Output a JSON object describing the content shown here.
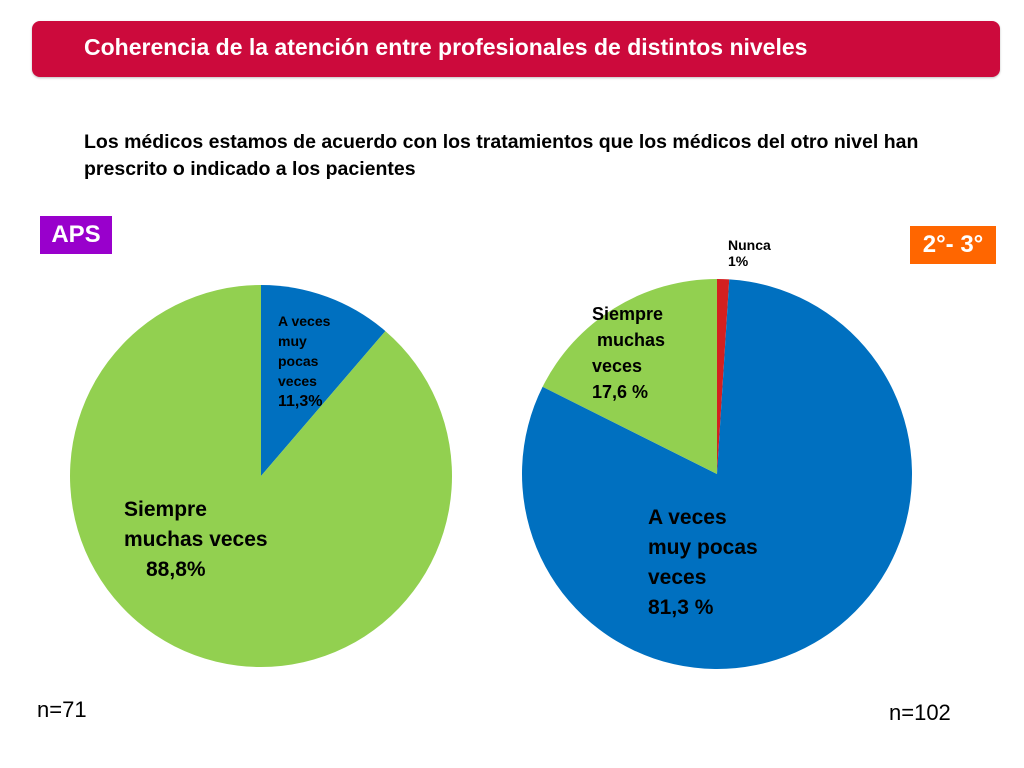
{
  "title": "Coherencia de la atención entre profesionales de distintos niveles",
  "question": "Los médicos estamos de acuerdo con los tratamientos que los médicos del otro nivel han prescrito o indicado a los pacientes",
  "colors": {
    "title_bg": "#cc0a3c",
    "green": "#92d050",
    "blue": "#0070c0",
    "red": "#d32020",
    "tag_left": "#9900cc",
    "tag_right": "#ff6600"
  },
  "chart_data": [
    {
      "type": "pie",
      "title": "APS",
      "n_label": "n=71",
      "slices": [
        {
          "label_lines": [
            "A veces",
            "muy",
            "pocas",
            "veces"
          ],
          "value_label": "11,3%",
          "value": 11.3,
          "color": "#0070c0"
        },
        {
          "label_lines": [
            "Siempre",
            "muchas veces"
          ],
          "value_label": "88,8%",
          "value": 88.8,
          "color": "#92d050"
        }
      ]
    },
    {
      "type": "pie",
      "title": "2°- 3°",
      "n_label": "n=102",
      "slices": [
        {
          "label_lines": [
            "Nunca"
          ],
          "value_label": "1%",
          "value": 1,
          "color": "#d32020"
        },
        {
          "label_lines": [
            "A veces",
            "muy pocas",
            "veces"
          ],
          "value_label": "81,3 %",
          "value": 81.3,
          "color": "#0070c0"
        },
        {
          "label_lines": [
            "Siempre",
            " muchas",
            "veces"
          ],
          "value_label": "17,6 %",
          "value": 17.6,
          "color": "#92d050"
        }
      ]
    }
  ]
}
